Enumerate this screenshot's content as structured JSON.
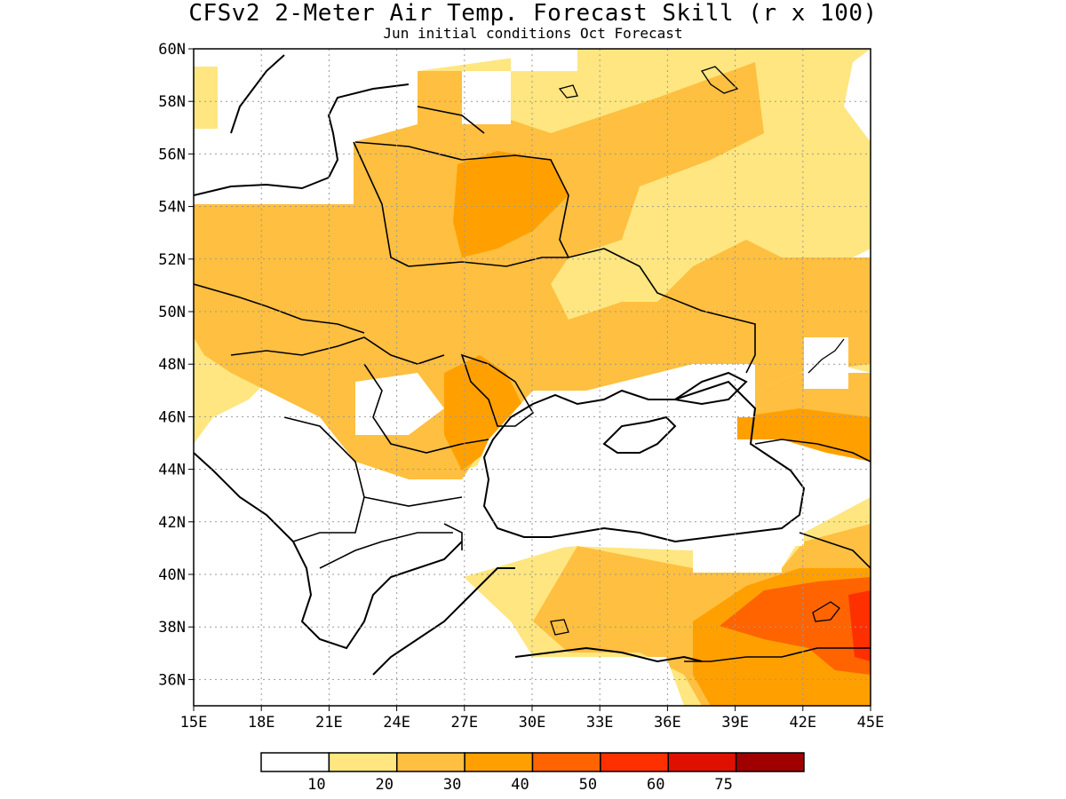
{
  "title": "CFSv2 2-Meter Air Temp. Forecast Skill (r x 100)",
  "subtitle": "Jun initial conditions  Oct Forecast",
  "lat_labels": [
    "60N",
    "58N",
    "56N",
    "54N",
    "52N",
    "50N",
    "48N",
    "46N",
    "44N",
    "42N",
    "40N",
    "38N",
    "36N"
  ],
  "lon_labels": [
    "15E",
    "18E",
    "21E",
    "24E",
    "27E",
    "30E",
    "33E",
    "36E",
    "39E",
    "42E",
    "45E"
  ],
  "colorbar": {
    "colors": [
      "#ffffff",
      "#ffe680",
      "#ffbf40",
      "#ffa000",
      "#ff6400",
      "#ff3000",
      "#e01000",
      "#a00000"
    ],
    "labels": [
      "10",
      "20",
      "30",
      "40",
      "50",
      "60",
      "75"
    ]
  },
  "colors": {
    "none": "#ffffff",
    "c10": "#ffe680",
    "c20": "#ffbf40",
    "c30": "#ffa000",
    "c40": "#ff6400",
    "c50": "#ff3000",
    "outline": "#000000",
    "grid": "#999999"
  }
}
